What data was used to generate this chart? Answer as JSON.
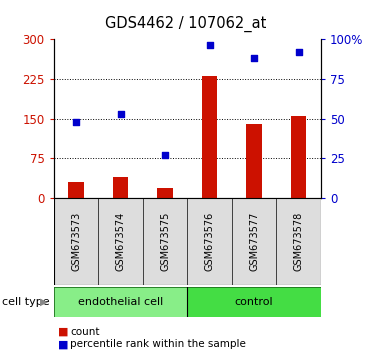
{
  "title": "GDS4462 / 107062_at",
  "samples": [
    "GSM673573",
    "GSM673574",
    "GSM673575",
    "GSM673576",
    "GSM673577",
    "GSM673578"
  ],
  "bar_values": [
    30,
    40,
    20,
    230,
    140,
    155
  ],
  "scatter_values_pct": [
    48,
    53,
    27,
    96,
    88,
    92
  ],
  "ylim_left": [
    0,
    300
  ],
  "ylim_right": [
    0,
    100
  ],
  "yticks_left": [
    0,
    75,
    150,
    225,
    300
  ],
  "yticks_right": [
    0,
    25,
    50,
    75,
    100
  ],
  "ytick_labels_right": [
    "0",
    "25",
    "50",
    "75",
    "100%"
  ],
  "bar_color": "#cc1100",
  "scatter_color": "#0000cc",
  "groups": [
    {
      "label": "endothelial cell",
      "start": 0,
      "end": 3,
      "color": "#88ee88"
    },
    {
      "label": "control",
      "start": 3,
      "end": 6,
      "color": "#44dd44"
    }
  ],
  "cell_type_label": "cell type",
  "legend_count_label": "count",
  "legend_pct_label": "percentile rank within the sample",
  "bg_color": "#ffffff"
}
